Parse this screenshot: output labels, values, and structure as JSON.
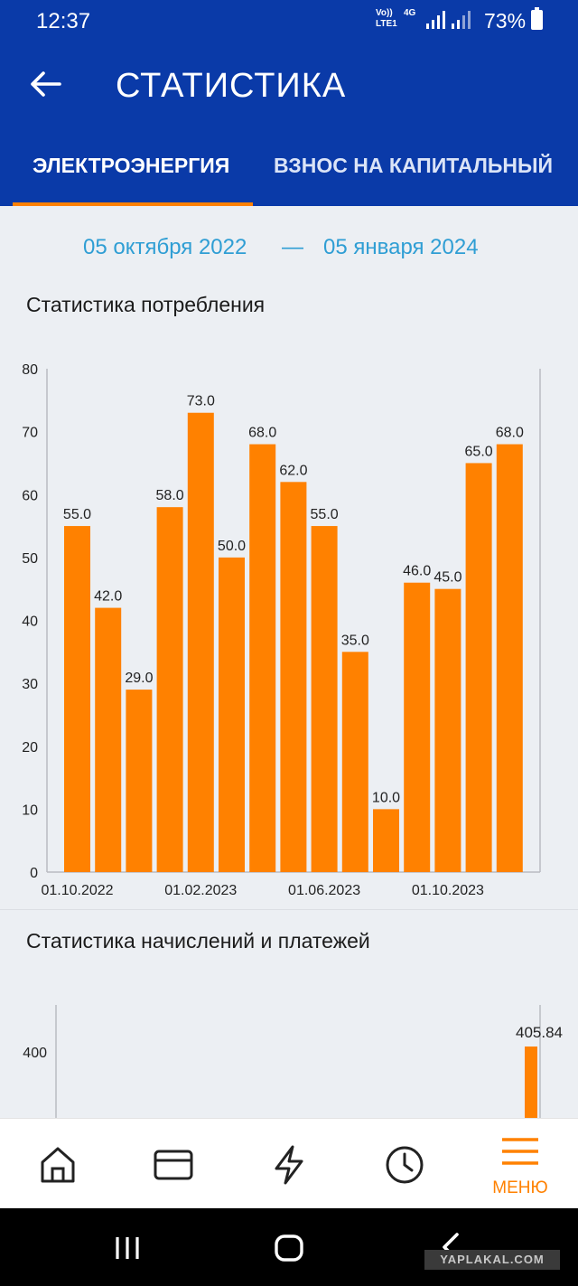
{
  "status_bar": {
    "time": "12:37",
    "net_line1": "Vo))",
    "net_line2": "LTE1",
    "net_type": "4G",
    "battery": "73%"
  },
  "app_bar": {
    "title": "СТАТИСТИКА"
  },
  "tabs": [
    {
      "label": "ЭЛЕКТРОЭНЕРГИЯ",
      "active": true
    },
    {
      "label": "ВЗНОС НА КАПИТАЛЬНЫЙ",
      "active": false
    }
  ],
  "date_range": {
    "from": "05 октября 2022",
    "separator": "—",
    "to": "05 января 2024"
  },
  "sections": {
    "consumption_title": "Статистика потребления",
    "payments_title": "Статистика начислений и платежей"
  },
  "chart_data": [
    {
      "type": "bar",
      "title": "Статистика потребления",
      "values": [
        55.0,
        42.0,
        29.0,
        58.0,
        73.0,
        50.0,
        68.0,
        62.0,
        55.0,
        35.0,
        10.0,
        46.0,
        45.0,
        65.0,
        68.0
      ],
      "value_labels": [
        "55.0",
        "42.0",
        "29.0",
        "58.0",
        "73.0",
        "50.0",
        "68.0",
        "62.0",
        "55.0",
        "35.0",
        "10.0",
        "46.0",
        "45.0",
        "65.0",
        "68.0"
      ],
      "x_tick_labels": [
        "01.10.2022",
        "01.02.2023",
        "01.06.2023",
        "01.10.2023"
      ],
      "x_tick_bar_index": [
        0,
        4,
        8,
        12
      ],
      "y_ticks": [
        "0",
        "10",
        "20",
        "30",
        "40",
        "50",
        "60",
        "70",
        "80"
      ],
      "ylim": [
        0,
        80
      ],
      "color": "#ff8100",
      "grid": false
    },
    {
      "type": "bar",
      "title": "Статистика начислений и платежей",
      "values": [
        405.84
      ],
      "value_labels": [
        "405.84"
      ],
      "y_ticks": [
        "400"
      ],
      "color": "#ff8100",
      "grid": false
    }
  ],
  "bottom_nav": {
    "items": [
      "home-icon",
      "card-icon",
      "lightning-icon",
      "clock-icon",
      "menu-icon"
    ],
    "menu_label": "МЕНЮ",
    "active_color": "#ff8100"
  },
  "watermark": "YAPLAKAL.COM"
}
